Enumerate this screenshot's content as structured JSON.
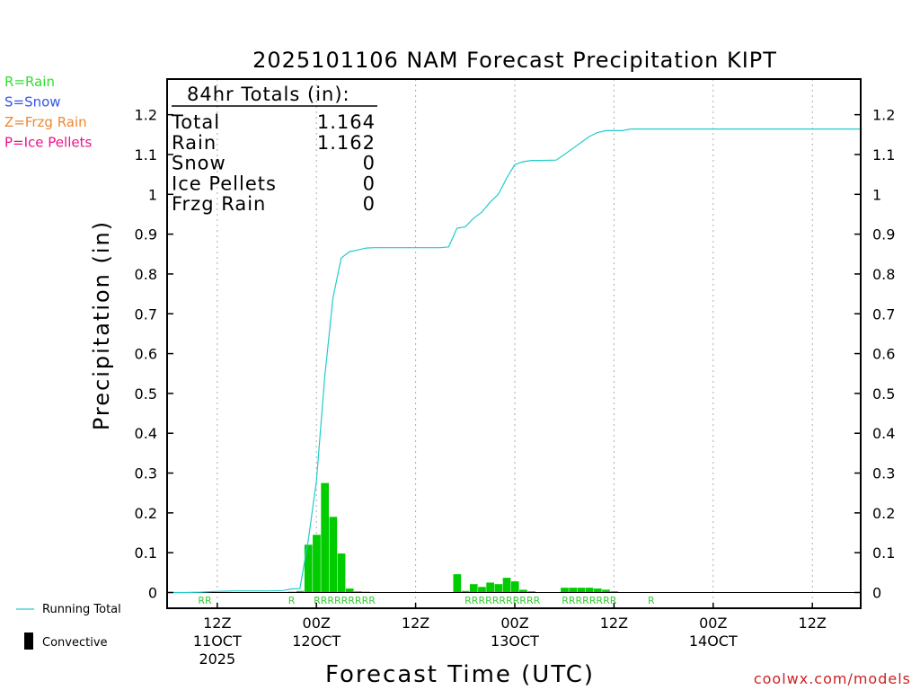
{
  "chart_data": {
    "type": "bar",
    "title": "2025101106 NAM Forecast Precipitation KIPT",
    "xlabel": "Forecast Time (UTC)",
    "ylabel": "Precipitation (in)",
    "ylim": [
      0,
      1.27
    ],
    "y_ticks": [
      0,
      0.1,
      0.2,
      0.3,
      0.4,
      0.5,
      0.6,
      0.7,
      0.8,
      0.9,
      1,
      1.1,
      1.2
    ],
    "y_tick_labels": [
      "0",
      "0.1",
      "0.2",
      "0.3",
      "0.4",
      "0.5",
      "0.6",
      "0.7",
      "0.8",
      "0.9",
      "1",
      "1.1",
      "1.2"
    ],
    "x_unit": "forecast hours from 2025101106",
    "xlim": [
      0,
      84
    ],
    "x_ticks": [
      {
        "hour": 6,
        "lines": [
          "12Z",
          "11OCT",
          "2025"
        ]
      },
      {
        "hour": 18,
        "lines": [
          "00Z",
          "12OCT"
        ]
      },
      {
        "hour": 30,
        "lines": [
          "12Z"
        ]
      },
      {
        "hour": 42,
        "lines": [
          "00Z",
          "13OCT"
        ]
      },
      {
        "hour": 54,
        "lines": [
          "12Z"
        ]
      },
      {
        "hour": 66,
        "lines": [
          "00Z",
          "14OCT"
        ]
      },
      {
        "hour": 78,
        "lines": [
          "12Z"
        ]
      }
    ],
    "grid": "vertical dotted at tick hours",
    "legend": {
      "precip_types": [
        {
          "text": "R=Rain",
          "color": "#33dd33"
        },
        {
          "text": "S=Snow",
          "color": "#3355ee"
        },
        {
          "text": "Z=Frzg Rain",
          "color": "#ee8833"
        },
        {
          "text": "P=Ice Pellets",
          "color": "#ee1188"
        }
      ],
      "running_total_label": "Running Total",
      "convective_label": "Convective"
    },
    "totals_box": {
      "header": "84hr Totals (in):",
      "rows": [
        {
          "label": "Total",
          "value": "1.164"
        },
        {
          "label": "Rain",
          "value": "1.162"
        },
        {
          "label": "Snow",
          "value": "0"
        },
        {
          "label": "Ice Pellets",
          "value": "0"
        },
        {
          "label": "Frzg Rain",
          "value": "0"
        }
      ]
    },
    "series": [
      {
        "name": "Hourly Precipitation",
        "color": "#00cc00",
        "bar_hours": [
          15,
          16,
          17,
          18,
          19,
          20,
          21,
          22,
          23,
          24,
          35,
          36,
          37,
          38,
          39,
          40,
          41,
          42,
          43,
          44,
          48,
          49,
          50,
          51,
          52,
          53,
          54
        ],
        "values": [
          0.002,
          0.004,
          0.12,
          0.145,
          0.275,
          0.19,
          0.098,
          0.01,
          0.003,
          0.002,
          0.046,
          0.004,
          0.021,
          0.014,
          0.025,
          0.021,
          0.037,
          0.028,
          0.007,
          0.003,
          0.012,
          0.012,
          0.012,
          0.012,
          0.01,
          0.007,
          0.003
        ]
      },
      {
        "name": "Running Total",
        "color": "#22cccc",
        "x": [
          0,
          2,
          4,
          6,
          8,
          10,
          12,
          14,
          15,
          16,
          17,
          18,
          19,
          20,
          21,
          22,
          23,
          24,
          25,
          30,
          33,
          34,
          35,
          36,
          37,
          38,
          39,
          40,
          41,
          42,
          43,
          44,
          45,
          47,
          48,
          49,
          50,
          51,
          52,
          53,
          54,
          55,
          56,
          84
        ],
        "values": [
          0,
          0,
          0.001,
          0.003,
          0.004,
          0.004,
          0.004,
          0.005,
          0.009,
          0.01,
          0.13,
          0.28,
          0.54,
          0.74,
          0.84,
          0.856,
          0.86,
          0.865,
          0.866,
          0.866,
          0.866,
          0.868,
          0.915,
          0.918,
          0.94,
          0.955,
          0.98,
          1.0,
          1.04,
          1.075,
          1.082,
          1.085,
          1.085,
          1.086,
          1.1,
          1.115,
          1.13,
          1.145,
          1.155,
          1.16,
          1.16,
          1.16,
          1.164,
          1.164
        ]
      }
    ],
    "ptype_labels": [
      {
        "hour": 4.5,
        "text": "RR"
      },
      {
        "hour": 15,
        "text": "R"
      },
      {
        "hour": 21.4,
        "text": "RRRRRRRRR"
      },
      {
        "hour": 40.5,
        "text": "RRRRRRRRRRR"
      },
      {
        "hour": 51.0,
        "text": "RRRRRRRR"
      },
      {
        "hour": 58.5,
        "text": "R"
      }
    ],
    "credit": "coolwx.com/models"
  }
}
